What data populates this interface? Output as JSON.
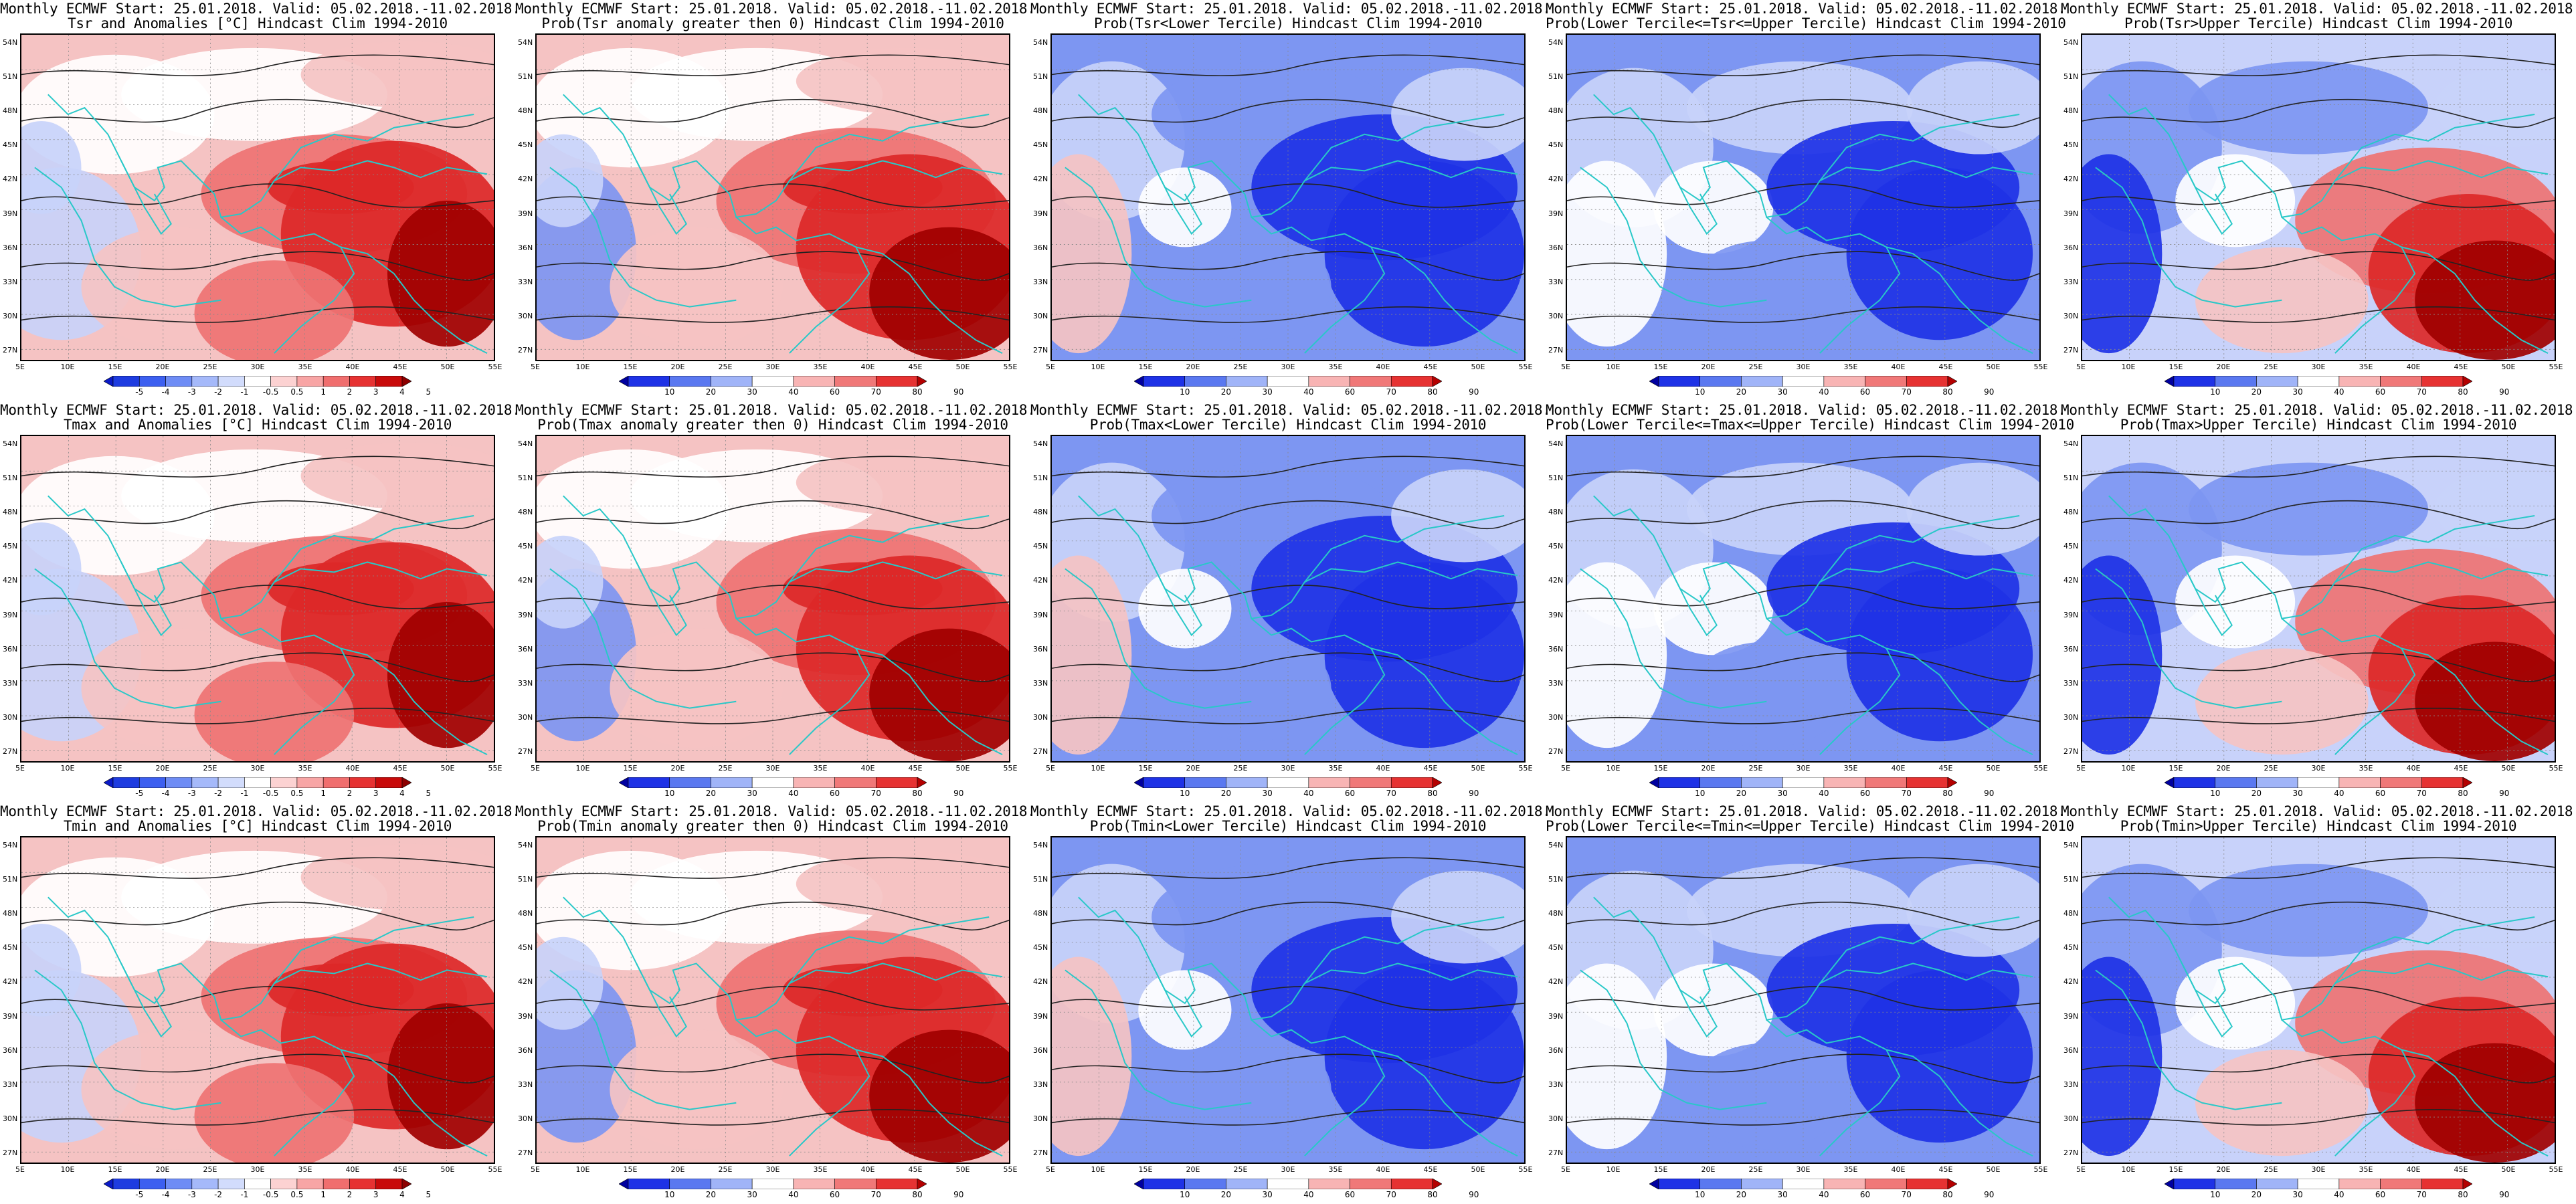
{
  "figure": {
    "header_line": "Monthly ECMWF Start: 25.01.2018. Valid: 05.02.2018.-11.02.2018.",
    "lat_labels": [
      "54N",
      "51N",
      "48N",
      "45N",
      "42N",
      "39N",
      "36N",
      "33N",
      "30N",
      "27N"
    ],
    "lon_labels": [
      "5E",
      "10E",
      "15E",
      "20E",
      "25E",
      "30E",
      "35E",
      "40E",
      "45E",
      "50E",
      "55E"
    ],
    "anomaly_scale": {
      "labels": [
        "-5",
        "-4",
        "-3",
        "-2",
        "-1",
        "-0.5",
        "0.5",
        "1",
        "2",
        "3",
        "4",
        "5"
      ],
      "colors": [
        "#0a1ac8",
        "#1e3ce0",
        "#3c5ff0",
        "#6e8cf5",
        "#a5b9fa",
        "#d2dcfc",
        "#ffffff",
        "#fcd2d2",
        "#f8a5a5",
        "#f06e6e",
        "#e63232",
        "#c80a0a",
        "#8c0000"
      ]
    },
    "probability_scale": {
      "labels": [
        "10",
        "20",
        "30",
        "40",
        "60",
        "70",
        "80",
        "90"
      ],
      "colors": [
        "#0000a0",
        "#1e32e6",
        "#5a78f0",
        "#a0b4f8",
        "#ffffff",
        "#f8b4b4",
        "#f07878",
        "#e63232",
        "#b40000"
      ]
    },
    "map_colors": {
      "strong_cold": "#1e32e6",
      "cold": "#7d96f2",
      "cool": "#c8d2fa",
      "neutral": "#ffffff",
      "mild": "#f5c3c3",
      "warm": "#ee7373",
      "hot": "#dc2828",
      "very_hot": "#a00000",
      "coast": "#28c8c8",
      "contour": "#222222"
    },
    "rows": [
      {
        "variable": "Tsr",
        "panels": [
          {
            "title": "Tsr and Anomalies [°C] Hindcast Clim 1994-2010",
            "scale": "anomaly",
            "pattern": "anom_warm"
          },
          {
            "title": "Prob(Tsr anomaly greater then 0) Hindcast Clim 1994-2010",
            "scale": "probability",
            "pattern": "prob_gt0"
          },
          {
            "title": "Prob(Tsr<Lower Tercile) Hindcast Clim 1994-2010",
            "scale": "probability",
            "pattern": "prob_lower"
          },
          {
            "title": "Prob(Lower Tercile<=Tsr<=Upper Tercile) Hindcast Clim 1994-2010",
            "scale": "probability",
            "pattern": "prob_middle"
          },
          {
            "title": "Prob(Tsr>Upper Tercile) Hindcast Clim 1994-2010",
            "scale": "probability",
            "pattern": "prob_upper"
          }
        ]
      },
      {
        "variable": "Tmax",
        "panels": [
          {
            "title": "Tmax and Anomalies [°C] Hindcast Clim 1994-2010",
            "scale": "anomaly",
            "pattern": "anom_warm"
          },
          {
            "title": "Prob(Tmax anomaly greater then 0) Hindcast Clim 1994-2010",
            "scale": "probability",
            "pattern": "prob_gt0"
          },
          {
            "title": "Prob(Tmax<Lower Tercile) Hindcast Clim 1994-2010",
            "scale": "probability",
            "pattern": "prob_lower"
          },
          {
            "title": "Prob(Lower Tercile<=Tmax<=Upper Tercile) Hindcast Clim 1994-2010",
            "scale": "probability",
            "pattern": "prob_middle"
          },
          {
            "title": "Prob(Tmax>Upper Tercile) Hindcast Clim 1994-2010",
            "scale": "probability",
            "pattern": "prob_upper"
          }
        ]
      },
      {
        "variable": "Tmin",
        "panels": [
          {
            "title": "Tmin and Anomalies [°C] Hindcast Clim 1994-2010",
            "scale": "anomaly",
            "pattern": "anom_warm"
          },
          {
            "title": "Prob(Tmin anomaly greater then 0) Hindcast Clim 1994-2010",
            "scale": "probability",
            "pattern": "prob_gt0"
          },
          {
            "title": "Prob(Tmin<Lower Tercile) Hindcast Clim 1994-2010",
            "scale": "probability",
            "pattern": "prob_lower"
          },
          {
            "title": "Prob(Lower Tercile<=Tmin<=Upper Tercile) Hindcast Clim 1994-2010",
            "scale": "probability",
            "pattern": "prob_middle"
          },
          {
            "title": "Prob(Tmin>Upper Tercile) Hindcast Clim 1994-2010",
            "scale": "probability",
            "pattern": "prob_upper"
          }
        ]
      }
    ]
  }
}
